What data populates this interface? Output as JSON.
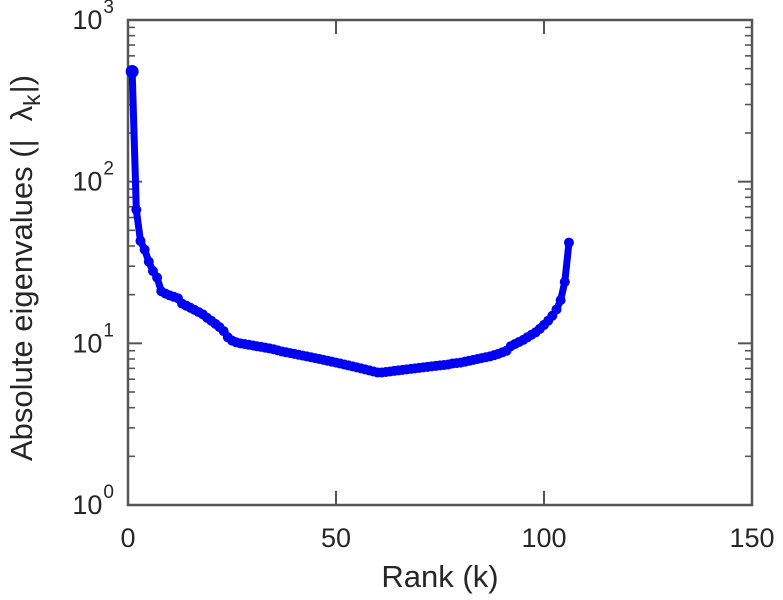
{
  "figure": {
    "background": "#ffffff",
    "description": "Log-scale plot of absolute eigenvalues versus rank"
  },
  "chart_data": {
    "type": "line",
    "xlabel": "Rank (k)",
    "ylabel_prefix": "Absolute eigenvalues (|",
    "ylabel_symbol": "λ",
    "ylabel_subscript": "k",
    "ylabel_suffix": "|)",
    "yscale": "log",
    "xlim": [
      0,
      150
    ],
    "ylim_exponents": [
      0,
      3
    ],
    "x_ticks": [
      0,
      50,
      100,
      150
    ],
    "y_tick_base": "10",
    "y_tick_exponents": [
      0,
      1,
      2,
      3
    ],
    "grid": false,
    "legend": "none",
    "line_color": "#0101f2",
    "axis_color": "#555555",
    "text_color": "#262626",
    "marker": "circle",
    "x": [
      1,
      2,
      3,
      4,
      5,
      6,
      7,
      8,
      9,
      10,
      11,
      12,
      13,
      14,
      15,
      16,
      17,
      18,
      19,
      20,
      21,
      22,
      23,
      24,
      25,
      26,
      27,
      28,
      29,
      30,
      31,
      32,
      33,
      34,
      35,
      36,
      37,
      38,
      39,
      40,
      41,
      42,
      43,
      44,
      45,
      46,
      47,
      48,
      49,
      50,
      51,
      52,
      53,
      54,
      55,
      56,
      57,
      58,
      59,
      60,
      61,
      62,
      63,
      64,
      65,
      66,
      67,
      68,
      69,
      70,
      71,
      72,
      73,
      74,
      75,
      76,
      77,
      78,
      79,
      80,
      81,
      82,
      83,
      84,
      85,
      86,
      87,
      88,
      89,
      90,
      91,
      92,
      93,
      94,
      95,
      96,
      97,
      98,
      99,
      100,
      101,
      102,
      103,
      104,
      105,
      106
    ],
    "y": [
      480,
      67,
      43,
      38,
      32,
      28,
      25.5,
      21,
      20.3,
      19.8,
      19.4,
      19.0,
      17.6,
      17.1,
      16.6,
      16.1,
      15.6,
      15.1,
      14.4,
      13.8,
      13.2,
      12.6,
      11.9,
      10.9,
      10.4,
      10.15,
      10.0,
      9.9,
      9.8,
      9.7,
      9.6,
      9.5,
      9.4,
      9.3,
      9.2,
      9.05,
      8.9,
      8.8,
      8.7,
      8.6,
      8.5,
      8.4,
      8.3,
      8.2,
      8.1,
      8.0,
      7.9,
      7.8,
      7.7,
      7.6,
      7.5,
      7.4,
      7.3,
      7.2,
      7.1,
      7.0,
      6.9,
      6.8,
      6.7,
      6.6,
      6.6,
      6.65,
      6.7,
      6.75,
      6.8,
      6.85,
      6.9,
      6.95,
      7.0,
      7.05,
      7.1,
      7.15,
      7.2,
      7.25,
      7.3,
      7.35,
      7.4,
      7.5,
      7.55,
      7.6,
      7.7,
      7.8,
      7.9,
      8.0,
      8.1,
      8.2,
      8.3,
      8.45,
      8.6,
      8.8,
      9.0,
      9.6,
      9.9,
      10.2,
      10.5,
      10.9,
      11.3,
      11.7,
      12.3,
      13.0,
      13.8,
      14.8,
      16.2,
      18.5,
      24,
      42
    ]
  }
}
